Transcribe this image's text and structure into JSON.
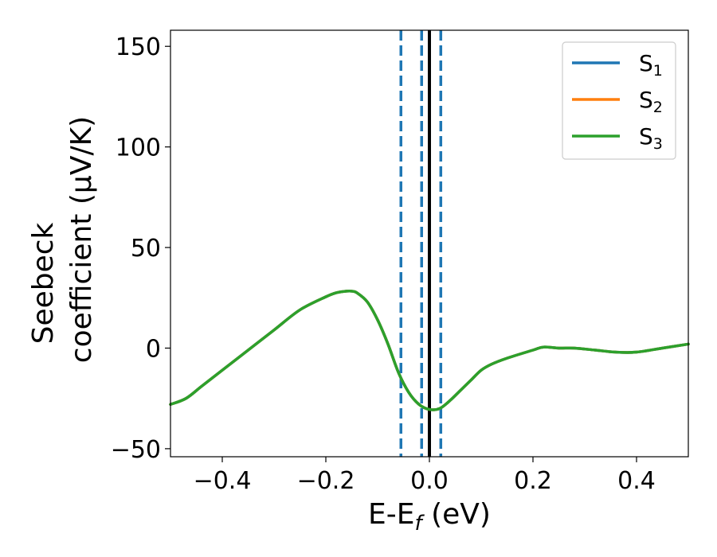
{
  "chart_data": {
    "type": "line",
    "xlabel": "E-E",
    "xlabel_sub": "f",
    "xlabel_unit": " (eV)",
    "ylabel_line1": "Seebeck",
    "ylabel_line2": "coefficient  (μV/K)",
    "xlim": [
      -0.5,
      0.5
    ],
    "ylim": [
      -54,
      158
    ],
    "x_ticks": [
      -0.4,
      -0.2,
      0.0,
      0.2,
      0.4
    ],
    "x_tick_labels": [
      "−0.4",
      "−0.2",
      "0.0",
      "0.2",
      "0.4"
    ],
    "y_ticks": [
      -50,
      0,
      50,
      100,
      150
    ],
    "y_tick_labels": [
      "−50",
      "0",
      "50",
      "100",
      "150"
    ],
    "grid": false,
    "legend_position": "top-right",
    "series": [
      {
        "name": "S",
        "sub": "1",
        "color": "#1f77b4",
        "x": [
          -0.5,
          -0.47,
          -0.44,
          -0.4,
          -0.35,
          -0.3,
          -0.25,
          -0.2,
          -0.18,
          -0.16,
          -0.15,
          -0.14,
          -0.12,
          -0.1,
          -0.08,
          -0.06,
          -0.04,
          -0.02,
          0.0,
          0.02,
          0.04,
          0.06,
          0.08,
          0.1,
          0.12,
          0.15,
          0.2,
          0.22,
          0.25,
          0.28,
          0.32,
          0.36,
          0.4,
          0.45,
          0.5
        ],
        "y": [
          -28,
          -25,
          -19,
          -11,
          -1,
          9,
          19,
          25.5,
          27.5,
          28.3,
          28.3,
          27.5,
          23,
          14,
          2,
          -12,
          -22,
          -28,
          -30.5,
          -30,
          -26,
          -21,
          -16,
          -11,
          -8,
          -5,
          -1,
          0.5,
          0,
          0,
          -1,
          -2,
          -2,
          0,
          2
        ]
      },
      {
        "name": "S",
        "sub": "2",
        "color": "#ff7f0e",
        "x": [
          -0.5,
          -0.47,
          -0.44,
          -0.4,
          -0.35,
          -0.3,
          -0.25,
          -0.2,
          -0.18,
          -0.16,
          -0.15,
          -0.14,
          -0.12,
          -0.1,
          -0.08,
          -0.06,
          -0.04,
          -0.02,
          0.0,
          0.02,
          0.04,
          0.06,
          0.08,
          0.1,
          0.12,
          0.15,
          0.2,
          0.22,
          0.25,
          0.28,
          0.32,
          0.36,
          0.4,
          0.45,
          0.5
        ],
        "y": [
          -28,
          -25,
          -19,
          -11,
          -1,
          9,
          19,
          25.5,
          27.5,
          28.3,
          28.3,
          27.5,
          23,
          14,
          2,
          -12,
          -22,
          -28,
          -30.5,
          -30,
          -26,
          -21,
          -16,
          -11,
          -8,
          -5,
          -1,
          0.5,
          0,
          0,
          -1,
          -2,
          -2,
          0,
          2
        ]
      },
      {
        "name": "S",
        "sub": "3",
        "color": "#2ca02c",
        "x": [
          -0.5,
          -0.47,
          -0.44,
          -0.4,
          -0.35,
          -0.3,
          -0.25,
          -0.2,
          -0.18,
          -0.16,
          -0.15,
          -0.14,
          -0.12,
          -0.1,
          -0.08,
          -0.06,
          -0.04,
          -0.02,
          0.0,
          0.02,
          0.04,
          0.06,
          0.08,
          0.1,
          0.12,
          0.15,
          0.2,
          0.22,
          0.25,
          0.28,
          0.32,
          0.36,
          0.4,
          0.45,
          0.5
        ],
        "y": [
          -28,
          -25,
          -19,
          -11,
          -1,
          9,
          19,
          25.5,
          27.5,
          28.3,
          28.3,
          27.5,
          23,
          14,
          2,
          -12,
          -22,
          -28,
          -30.5,
          -30,
          -26,
          -21,
          -16,
          -11,
          -8,
          -5,
          -1,
          0.5,
          0,
          0,
          -1,
          -2,
          -2,
          0,
          2
        ]
      }
    ],
    "vertical_lines": [
      {
        "x": -0.055,
        "style": "dashed",
        "color": "#1f77b4"
      },
      {
        "x": -0.015,
        "style": "dashed",
        "color": "#1f77b4"
      },
      {
        "x": 0.0,
        "style": "solid",
        "color": "#000000"
      },
      {
        "x": 0.022,
        "style": "dashed",
        "color": "#1f77b4"
      }
    ]
  }
}
